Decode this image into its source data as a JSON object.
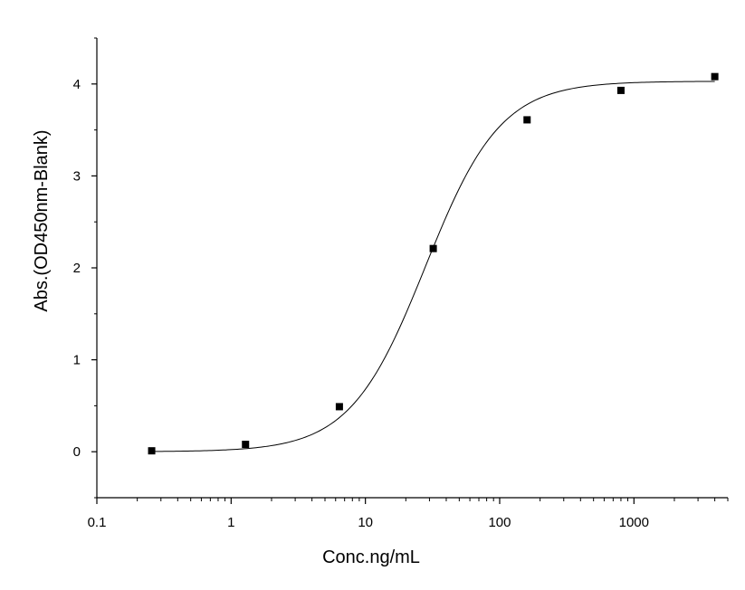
{
  "chart_data": {
    "type": "scatter",
    "xlabel": "Conc.ng/mL",
    "ylabel": "Abs.(OD450nm-Blank)",
    "x_scale": "log",
    "xlim": [
      0.1,
      5000
    ],
    "ylim": [
      -0.5,
      4.5
    ],
    "x_ticks": [
      {
        "value": 0.1,
        "label": "0.1"
      },
      {
        "value": 1,
        "label": "1"
      },
      {
        "value": 10,
        "label": "10"
      },
      {
        "value": 100,
        "label": "100"
      },
      {
        "value": 1000,
        "label": "1000"
      }
    ],
    "y_ticks": [
      {
        "value": 0,
        "label": "0"
      },
      {
        "value": 1,
        "label": "1"
      },
      {
        "value": 2,
        "label": "2"
      },
      {
        "value": 3,
        "label": "3"
      },
      {
        "value": 4,
        "label": "4"
      }
    ],
    "grid": false,
    "legend": "none",
    "marker": "square",
    "color": "#000000",
    "series": [
      {
        "points": [
          {
            "x": 0.256,
            "y": 0.01
          },
          {
            "x": 1.28,
            "y": 0.08
          },
          {
            "x": 6.4,
            "y": 0.49
          },
          {
            "x": 32,
            "y": 2.21
          },
          {
            "x": 160,
            "y": 3.61
          },
          {
            "x": 800,
            "y": 3.93
          },
          {
            "x": 4000,
            "y": 4.08
          }
        ]
      }
    ],
    "fit_curve": {
      "type": "4PL",
      "bottom": 0.0,
      "top": 4.03,
      "ec50": 28,
      "hill": 1.55
    }
  }
}
